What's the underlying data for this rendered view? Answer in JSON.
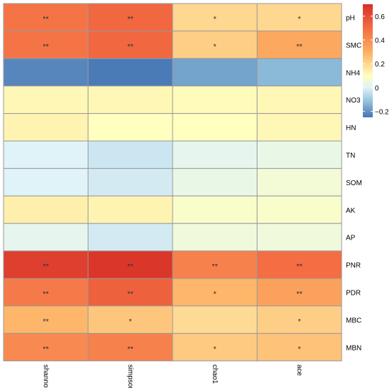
{
  "chart_data": {
    "type": "heatmap",
    "rows": [
      "pH",
      "SMC",
      "NH4",
      "NO3",
      "HN",
      "TN",
      "SOM",
      "AK",
      "AP",
      "PNR",
      "PDR",
      "MBC",
      "MBN"
    ],
    "columns": [
      "shannon",
      "simpson",
      "chao1",
      "ace"
    ],
    "values": [
      [
        0.48,
        0.52,
        0.2,
        0.2
      ],
      [
        0.48,
        0.52,
        0.22,
        0.32
      ],
      [
        -0.22,
        -0.24,
        -0.17,
        -0.13
      ],
      [
        0.12,
        0.12,
        0.11,
        0.12
      ],
      [
        0.13,
        0.1,
        0.1,
        0.12
      ],
      [
        0.0,
        -0.03,
        0.02,
        0.03
      ],
      [
        0.0,
        -0.02,
        0.03,
        0.06
      ],
      [
        0.14,
        0.13,
        0.08,
        0.08
      ],
      [
        0.02,
        -0.02,
        0.05,
        0.05
      ],
      [
        0.65,
        0.68,
        0.44,
        0.5
      ],
      [
        0.46,
        0.54,
        0.28,
        0.34
      ],
      [
        0.28,
        0.24,
        0.19,
        0.22
      ],
      [
        0.41,
        0.44,
        0.23,
        0.25
      ]
    ],
    "significance": [
      [
        "**",
        "**",
        "*",
        "*"
      ],
      [
        "**",
        "**",
        "*",
        "**"
      ],
      [
        "",
        "",
        "",
        ""
      ],
      [
        "",
        "",
        "",
        ""
      ],
      [
        "",
        "",
        "",
        ""
      ],
      [
        "",
        "",
        "",
        ""
      ],
      [
        "",
        "",
        "",
        ""
      ],
      [
        "",
        "",
        "",
        ""
      ],
      [
        "",
        "",
        "",
        ""
      ],
      [
        "**",
        "**",
        "**",
        "**"
      ],
      [
        "**",
        "**",
        "*",
        "**"
      ],
      [
        "**",
        "*",
        "",
        "*"
      ],
      [
        "**",
        "**",
        "*",
        "*"
      ]
    ],
    "color_scale": {
      "min": -0.25,
      "max": 0.7,
      "stops": [
        {
          "value": -0.25,
          "color": "#4575b4"
        },
        {
          "value": -0.12,
          "color": "#91bfdb"
        },
        {
          "value": 0.0,
          "color": "#e0f3f8"
        },
        {
          "value": 0.1,
          "color": "#ffffbf"
        },
        {
          "value": 0.3,
          "color": "#fdae61"
        },
        {
          "value": 0.5,
          "color": "#f46d43"
        },
        {
          "value": 0.7,
          "color": "#d73027"
        }
      ]
    },
    "legend": {
      "ticks": [
        {
          "value": 0.6,
          "label": "0.6"
        },
        {
          "value": 0.4,
          "label": "0.4"
        },
        {
          "value": 0.2,
          "label": "0.2"
        },
        {
          "value": 0.0,
          "label": "0"
        },
        {
          "value": -0.2,
          "label": "−0.2"
        }
      ],
      "placement": "right"
    },
    "grid_color": "#999999"
  }
}
